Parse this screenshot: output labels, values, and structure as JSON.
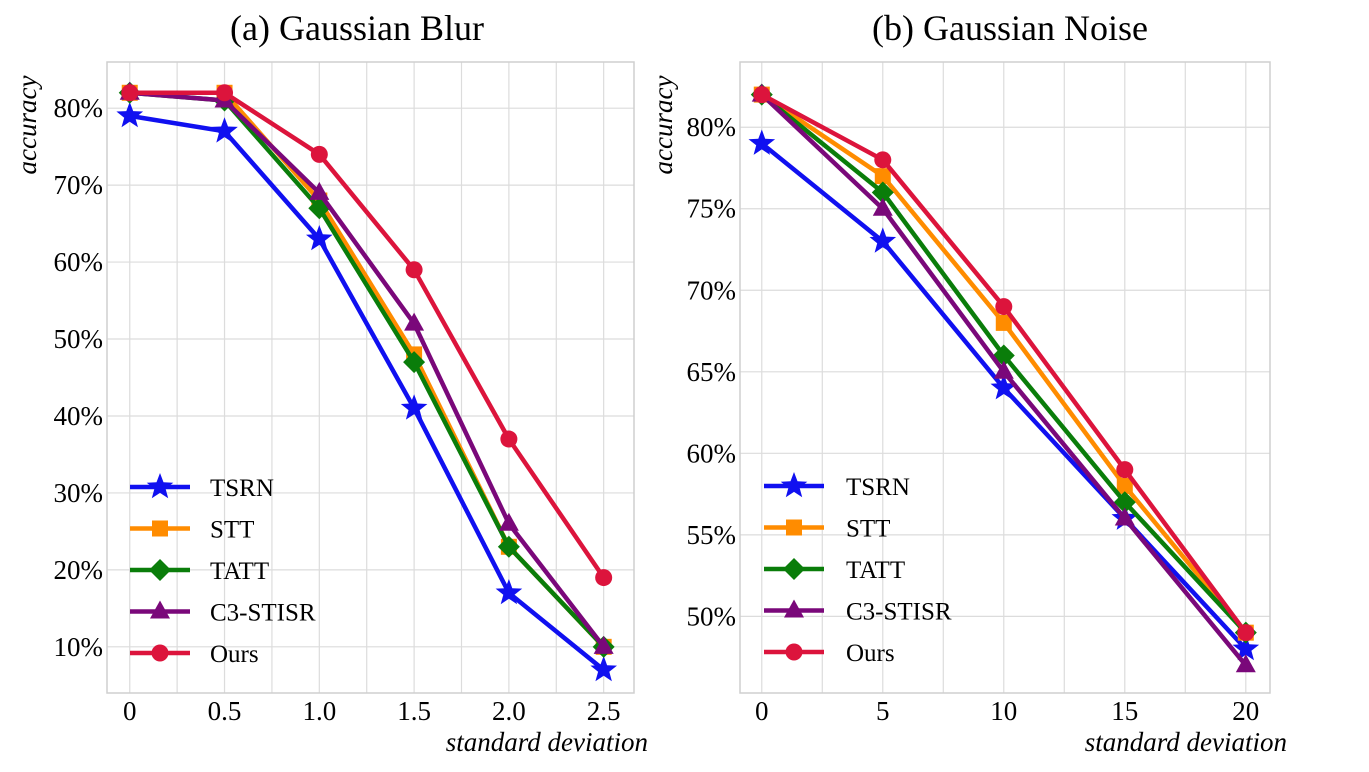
{
  "chart_data": [
    {
      "type": "line",
      "title": "(a) Gaussian Blur",
      "xlabel": "standard deviation",
      "ylabel": "accuracy",
      "x": [
        0,
        0.5,
        1.0,
        1.5,
        2.0,
        2.5
      ],
      "x_tick_labels": [
        "0",
        "0.5",
        "1.0",
        "1.5",
        "2.0",
        "2.5"
      ],
      "y_ticks": [
        10,
        20,
        30,
        40,
        50,
        60,
        70,
        80
      ],
      "y_tick_labels": [
        "10%",
        "20%",
        "30%",
        "40%",
        "50%",
        "60%",
        "70%",
        "80%"
      ],
      "xlim": [
        -0.12,
        2.66
      ],
      "ylim": [
        4.0,
        86.0
      ],
      "grid": true,
      "legend_position": "lower-left",
      "series": [
        {
          "name": "TSRN",
          "color": "#1010f0",
          "marker": "star",
          "values": [
            79,
            77,
            63,
            41,
            17,
            7
          ]
        },
        {
          "name": "STT",
          "color": "#ff8c00",
          "marker": "square",
          "values": [
            82,
            82,
            68,
            48,
            23,
            10
          ]
        },
        {
          "name": "TATT",
          "color": "#0a7d0a",
          "marker": "diamond",
          "values": [
            82,
            81,
            67,
            47,
            23,
            10
          ]
        },
        {
          "name": "C3-STISR",
          "color": "#7a087a",
          "marker": "triangle",
          "values": [
            82,
            81,
            69,
            52,
            26,
            10
          ]
        },
        {
          "name": "Ours",
          "color": "#dc143c",
          "marker": "circle",
          "values": [
            82,
            82,
            74,
            59,
            37,
            19
          ]
        }
      ]
    },
    {
      "type": "line",
      "title": "(b) Gaussian Noise",
      "xlabel": "standard deviation",
      "ylabel": "accuracy",
      "x": [
        0,
        5,
        10,
        15,
        20
      ],
      "x_tick_labels": [
        "0",
        "5",
        "10",
        "15",
        "20"
      ],
      "y_ticks": [
        50,
        55,
        60,
        65,
        70,
        75,
        80
      ],
      "y_tick_labels": [
        "50%",
        "55%",
        "60%",
        "65%",
        "70%",
        "75%",
        "80%"
      ],
      "xlim": [
        -0.9,
        21.0
      ],
      "ylim": [
        45.3,
        84.0
      ],
      "grid": true,
      "legend_position": "lower-left",
      "series": [
        {
          "name": "TSRN",
          "color": "#1010f0",
          "marker": "star",
          "values": [
            79,
            73,
            64,
            56,
            48
          ]
        },
        {
          "name": "STT",
          "color": "#ff8c00",
          "marker": "square",
          "values": [
            82,
            77,
            68,
            58,
            49
          ]
        },
        {
          "name": "TATT",
          "color": "#0a7d0a",
          "marker": "diamond",
          "values": [
            82,
            76,
            66,
            57,
            49
          ]
        },
        {
          "name": "C3-STISR",
          "color": "#7a087a",
          "marker": "triangle",
          "values": [
            82,
            75,
            65,
            56,
            47
          ]
        },
        {
          "name": "Ours",
          "color": "#dc143c",
          "marker": "circle",
          "values": [
            82,
            78,
            69,
            59,
            49
          ]
        }
      ]
    }
  ]
}
